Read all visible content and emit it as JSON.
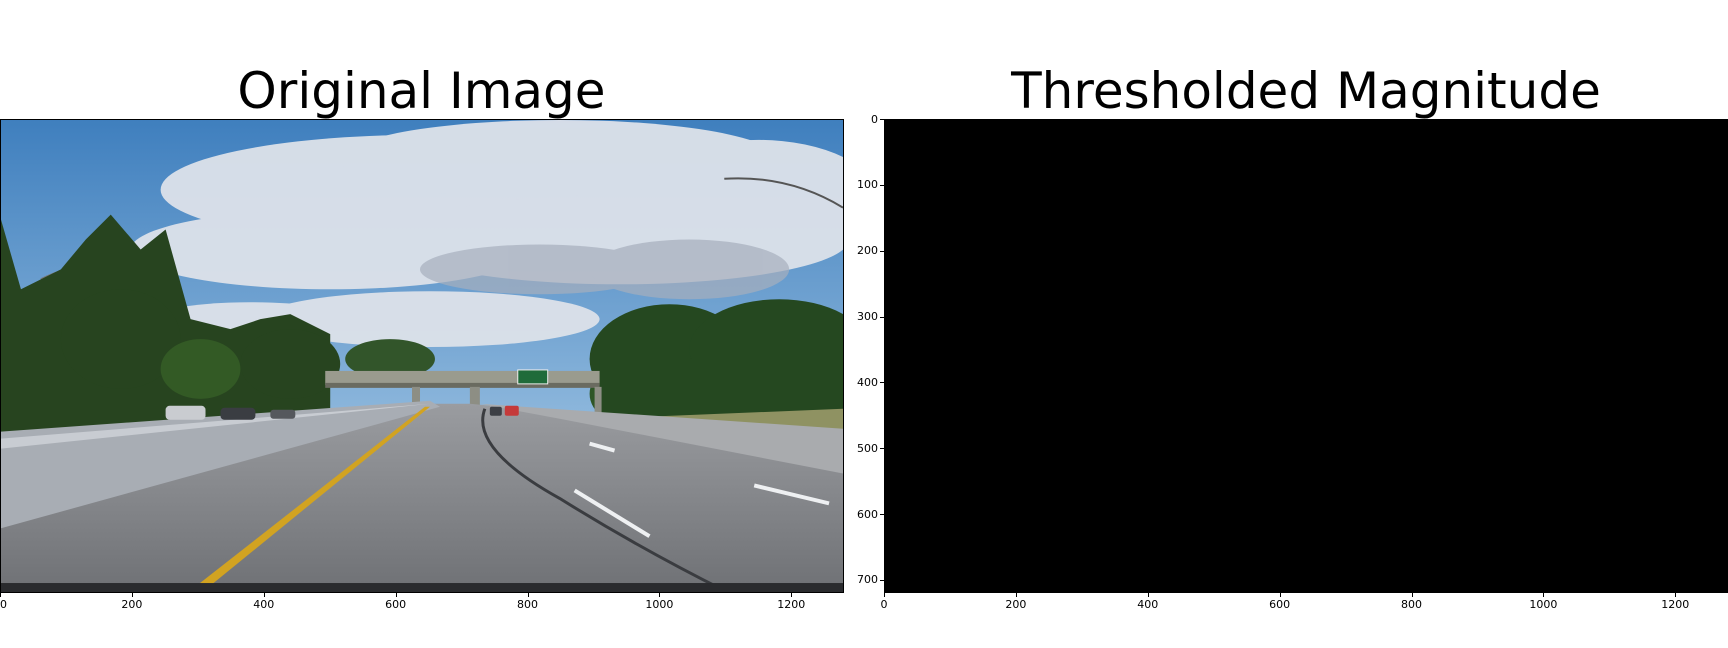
{
  "panels": [
    {
      "title": "Original Image",
      "content": "road-photo",
      "x_ticks": [
        "0",
        "200",
        "400",
        "600",
        "800",
        "1000",
        "1200"
      ],
      "y_ticks": []
    },
    {
      "title": "Thresholded Magnitude",
      "content": "black-image",
      "x_ticks": [
        "0",
        "200",
        "400",
        "600",
        "800",
        "1000",
        "1200"
      ],
      "y_ticks": [
        "0",
        "100",
        "200",
        "300",
        "400",
        "500",
        "600",
        "700"
      ]
    }
  ],
  "image_extent": {
    "width": 1280,
    "height": 720
  },
  "colors": {
    "sky": "#4f8fc8",
    "cloud": "#dfe4ec",
    "trees": "#2a4a22",
    "road": "#8a8d92",
    "lane_yellow": "#d2a321",
    "threshold_background": "#000000"
  }
}
